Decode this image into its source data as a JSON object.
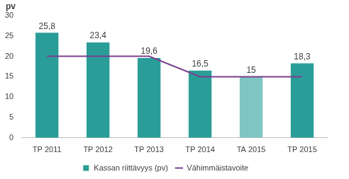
{
  "chart_data": {
    "type": "bar",
    "y_label": "pv",
    "categories": [
      "TP 2011",
      "TP 2012",
      "TP 2013",
      "TP 2014",
      "TA 2015",
      "TP 2015"
    ],
    "series": [
      {
        "name": "Kassan riittävyys (pv)",
        "type": "bar",
        "color": "#2a9d99",
        "colors": [
          "#2a9d99",
          "#2a9d99",
          "#2a9d99",
          "#2a9d99",
          "#7fc5c4",
          "#2a9d99"
        ],
        "values": [
          25.8,
          23.4,
          19.6,
          16.5,
          15,
          18.3
        ],
        "value_labels": [
          "25,8",
          "23,4",
          "19,6",
          "16,5",
          "15",
          "18,3"
        ],
        "data_labels": true
      },
      {
        "name": "Vähimmäistavoite",
        "type": "line",
        "color": "#7b3f8e",
        "values": [
          20,
          20,
          20,
          15,
          15,
          15
        ]
      }
    ],
    "ylim": [
      0,
      30
    ],
    "yticks": [
      0,
      5,
      10,
      15,
      20,
      25,
      30
    ],
    "grid": false,
    "legend": "bottom"
  }
}
